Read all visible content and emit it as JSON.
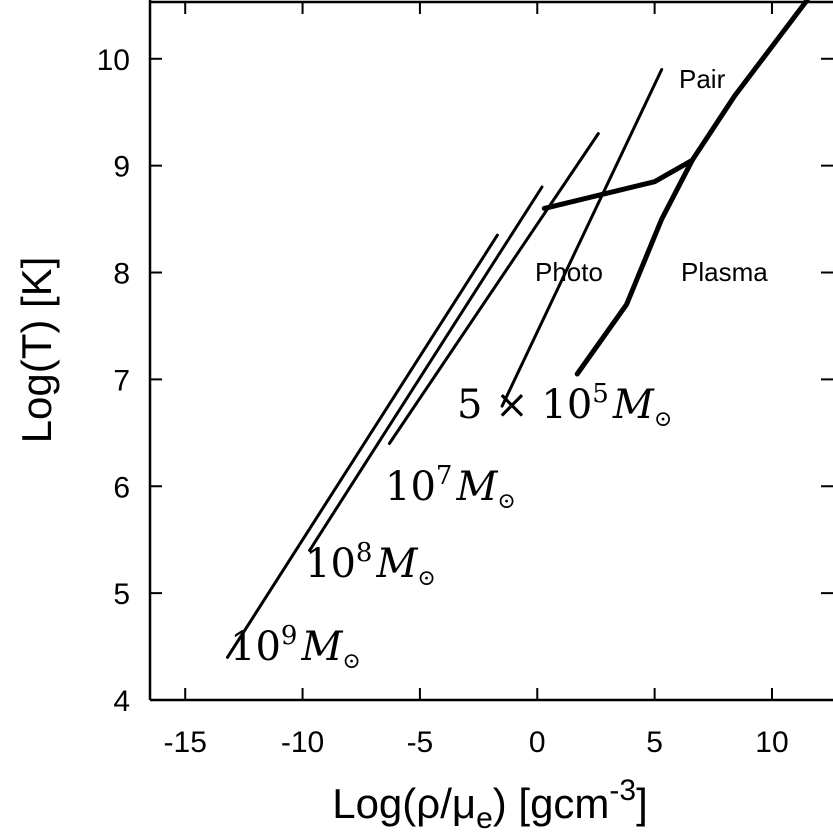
{
  "chart_data": {
    "type": "line",
    "xlabel": {
      "pre": "Log(",
      "rho": "ρ",
      "slash": "/",
      "mu": "μ",
      "mu_sub": "e",
      "post": ") [gcm",
      "exp": "-3",
      "close": "]"
    },
    "ylabel": "Log(T) [K]",
    "xlim": [
      -16.5,
      12.6
    ],
    "ylim": [
      4,
      10.55
    ],
    "xticks": [
      -15,
      -10,
      -5,
      0,
      5,
      10
    ],
    "yticks": [
      4,
      5,
      6,
      7,
      8,
      9,
      10
    ],
    "xtick_labels": [
      "-15",
      "-10",
      "-5",
      "0",
      "5",
      "10"
    ],
    "ytick_labels": [
      "4",
      "5",
      "6",
      "7",
      "8",
      "9",
      "10"
    ],
    "grid": false,
    "legend": "none",
    "series": [
      {
        "label": "1e9",
        "width": "thin",
        "points": [
          [
            -13.2,
            4.4
          ],
          [
            -1.7,
            8.35
          ]
        ]
      },
      {
        "label": "1e8",
        "width": "thin",
        "points": [
          [
            -9.7,
            5.4
          ],
          [
            0.2,
            8.8
          ]
        ]
      },
      {
        "label": "1e7",
        "width": "thin",
        "points": [
          [
            -6.3,
            6.4
          ],
          [
            2.6,
            9.3
          ]
        ]
      },
      {
        "label": "5e5",
        "width": "thin",
        "points": [
          [
            -1.5,
            6.75
          ],
          [
            5.3,
            9.9
          ]
        ]
      },
      {
        "label": "pair-boundary",
        "width": "thick",
        "points": [
          [
            0.3,
            8.6
          ],
          [
            5.0,
            8.85
          ],
          [
            6.6,
            9.05
          ],
          [
            8.4,
            9.65
          ],
          [
            11.5,
            10.55
          ]
        ]
      },
      {
        "label": "plasma-boundary",
        "width": "thick",
        "points": [
          [
            6.6,
            9.05
          ],
          [
            5.3,
            8.5
          ],
          [
            3.8,
            7.7
          ],
          [
            1.7,
            7.05
          ]
        ]
      }
    ],
    "region_labels": [
      "Pair",
      "Photo",
      "Plasma"
    ],
    "mass_labels": {
      "m9": {
        "base": "10",
        "exp": "9",
        "sym": "M",
        "sub": "⊙"
      },
      "m8": {
        "base": "10",
        "exp": "8",
        "sym": "M",
        "sub": "⊙"
      },
      "m7": {
        "base": "10",
        "exp": "7",
        "sym": "M",
        "sub": "⊙"
      },
      "m5": {
        "coef": "5 × 10",
        "exp": "5",
        "sym": "M",
        "sub": "⊙"
      }
    }
  }
}
